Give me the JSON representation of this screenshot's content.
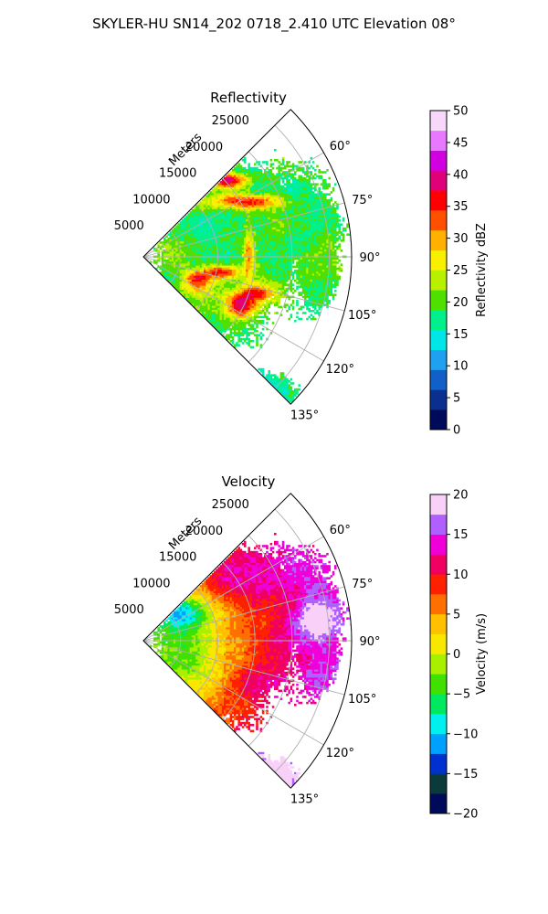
{
  "figure": {
    "suptitle": "SKYLER-HU  SN14_202  0718_2.410 UTC Elevation 08°"
  },
  "chart_data": [
    {
      "type": "heatmap",
      "projection": "polar-sector",
      "title": "Reflectivity",
      "radial_label": "Meters",
      "radial_ticks": [
        "5000",
        "10000",
        "15000",
        "20000",
        "25000"
      ],
      "radial_tick_values": [
        5000,
        10000,
        15000,
        20000,
        25000
      ],
      "r_max": 28000,
      "angle_ticks": [
        "60°",
        "75°",
        "90°",
        "105°",
        "120°",
        "135°"
      ],
      "angle_tick_values": [
        60,
        75,
        90,
        105,
        120,
        135
      ],
      "angle_range": [
        45,
        135
      ],
      "grid": true,
      "colorbar": {
        "label": "Reflectivity dBZ",
        "range": [
          0,
          50
        ],
        "ticks": [
          "0",
          "5",
          "10",
          "15",
          "20",
          "25",
          "30",
          "35",
          "40",
          "45",
          "50"
        ],
        "tick_values": [
          0,
          5,
          10,
          15,
          20,
          25,
          30,
          35,
          40,
          45,
          50
        ]
      },
      "colors": [
        "#000a5a",
        "#0a2f8f",
        "#1060c8",
        "#20a0f0",
        "#00e6e6",
        "#00f08c",
        "#50e000",
        "#b8f000",
        "#f8f000",
        "#ffb000",
        "#ff5000",
        "#ff0000",
        "#e0007a",
        "#d000e0",
        "#e878ff",
        "#f8d8fa"
      ]
    },
    {
      "type": "heatmap",
      "projection": "polar-sector",
      "title": "Velocity",
      "radial_label": "Meters",
      "radial_ticks": [
        "5000",
        "10000",
        "15000",
        "20000",
        "25000"
      ],
      "radial_tick_values": [
        5000,
        10000,
        15000,
        20000,
        25000
      ],
      "r_max": 28000,
      "angle_ticks": [
        "60°",
        "75°",
        "90°",
        "105°",
        "120°",
        "135°"
      ],
      "angle_tick_values": [
        60,
        75,
        90,
        105,
        120,
        135
      ],
      "angle_range": [
        45,
        135
      ],
      "grid": true,
      "colorbar": {
        "label": "Velocity (m/s)",
        "range": [
          -20,
          20
        ],
        "ticks": [
          "−20",
          "−15",
          "−10",
          "−5",
          "0",
          "5",
          "10",
          "15",
          "20"
        ],
        "tick_values": [
          -20,
          -15,
          -10,
          -5,
          0,
          5,
          10,
          15,
          20
        ]
      },
      "colors": [
        "#000a5a",
        "#0a3a3a",
        "#0030d0",
        "#00a0ff",
        "#00f0f0",
        "#00e860",
        "#40e000",
        "#a8f000",
        "#f8e800",
        "#ffc000",
        "#ff7000",
        "#ff2000",
        "#f00060",
        "#f000d8",
        "#b060ff",
        "#f8d0f8"
      ]
    }
  ]
}
